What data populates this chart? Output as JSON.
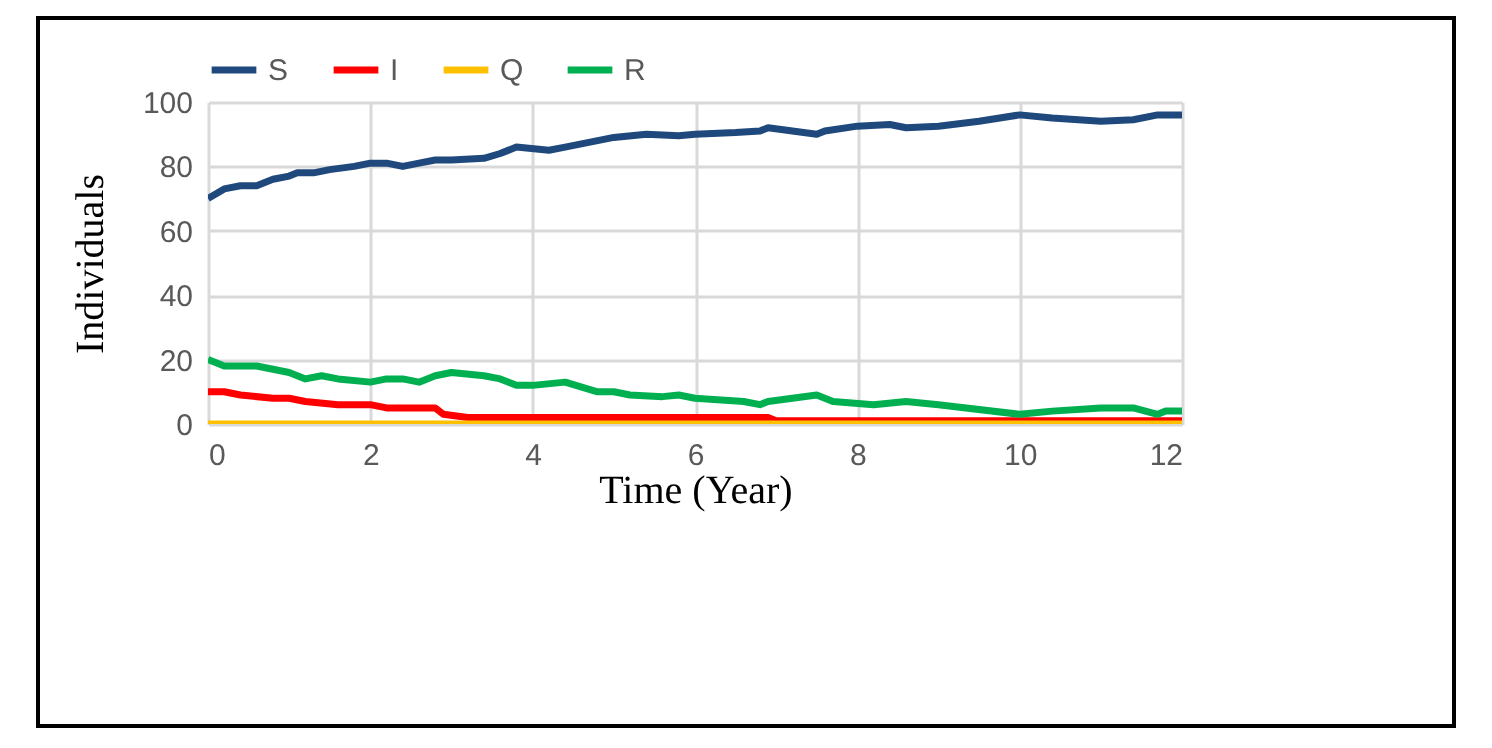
{
  "chart_data": {
    "type": "line",
    "xlabel": "Time (Year)",
    "ylabel": "Individuals",
    "xlim": [
      0,
      12
    ],
    "xticks": [
      0,
      2,
      4,
      6,
      8,
      10,
      12
    ],
    "ylim": [
      0,
      100
    ],
    "yticks": [
      0,
      20,
      40,
      60,
      80,
      100
    ],
    "grid": true,
    "legend": "top",
    "series": [
      {
        "name": "S",
        "color": "#1f497d",
        "x": [
          0,
          0.2,
          0.4,
          0.6,
          0.8,
          1,
          1.1,
          1.3,
          1.5,
          1.8,
          2,
          2.2,
          2.4,
          2.6,
          2.8,
          3,
          3.4,
          3.6,
          3.8,
          4.2,
          4.4,
          4.8,
          5,
          5.4,
          5.8,
          6,
          6.5,
          6.8,
          6.9,
          7.2,
          7.5,
          7.6,
          8,
          8.4,
          8.6,
          9,
          9.5,
          10,
          10.4,
          11,
          11.4,
          11.7,
          12
        ],
        "values": [
          70,
          73,
          74,
          74,
          76,
          77,
          78,
          78,
          79,
          80,
          81,
          81,
          80,
          81,
          82,
          82,
          82.5,
          84,
          86,
          85,
          86,
          88,
          89,
          90,
          89.5,
          90,
          90.5,
          91,
          92,
          91,
          90,
          91,
          92.5,
          93,
          92,
          92.5,
          94,
          96,
          95,
          94,
          94.5,
          96,
          96
        ]
      },
      {
        "name": "I",
        "color": "#ff0000",
        "x": [
          0,
          0.2,
          0.4,
          0.8,
          1,
          1.2,
          1.6,
          2,
          2.2,
          2.8,
          2.9,
          3.2,
          4,
          6,
          6.9,
          7,
          12
        ],
        "values": [
          10,
          10,
          9,
          8,
          8,
          7,
          6,
          6,
          5,
          5,
          3,
          2,
          2,
          2,
          2,
          1,
          1
        ]
      },
      {
        "name": "Q",
        "color": "#ffc000",
        "x": [
          0,
          12
        ],
        "values": [
          0,
          0
        ]
      },
      {
        "name": "R",
        "color": "#00b050",
        "x": [
          0,
          0.2,
          0.6,
          0.8,
          1,
          1.2,
          1.4,
          1.6,
          2,
          2.2,
          2.4,
          2.6,
          2.8,
          3,
          3.4,
          3.6,
          3.8,
          4,
          4.4,
          4.8,
          5,
          5.2,
          5.6,
          5.8,
          6,
          6.6,
          6.8,
          6.9,
          7.2,
          7.5,
          7.7,
          8.2,
          8.6,
          9,
          10,
          10.4,
          11,
          11.4,
          11.7,
          11.8,
          12
        ],
        "values": [
          20,
          18,
          18,
          17,
          16,
          14,
          15,
          14,
          13,
          14,
          14,
          13,
          15,
          16,
          15,
          14,
          12,
          12,
          13,
          10,
          10,
          9,
          8.5,
          9,
          8,
          7,
          6,
          7,
          8,
          9,
          7,
          6,
          7,
          6,
          3,
          4,
          5,
          5,
          3,
          4,
          4
        ]
      }
    ]
  }
}
